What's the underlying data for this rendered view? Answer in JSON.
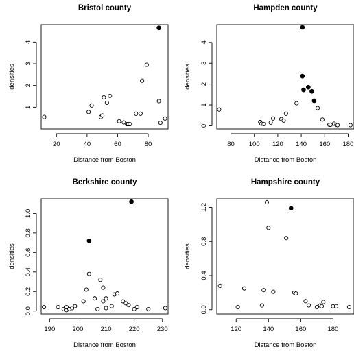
{
  "chart_data": [
    {
      "type": "scatter",
      "title": "Bristol county",
      "xlabel": "Distance from Boston",
      "ylabel": "densities",
      "xlim": [
        10,
        93
      ],
      "ylim": [
        0,
        4.8
      ],
      "xticks": [
        20,
        40,
        60,
        80
      ],
      "yticks": [
        1,
        2,
        3,
        4
      ],
      "points_open": {
        "x": [
          12,
          41,
          43,
          49,
          50,
          51,
          53,
          55,
          61,
          64,
          66,
          67,
          68,
          72,
          75,
          76,
          79,
          87,
          88,
          91
        ],
        "y": [
          0.55,
          0.78,
          1.08,
          0.55,
          0.62,
          1.45,
          1.2,
          1.52,
          0.35,
          0.3,
          0.22,
          0.22,
          0.22,
          0.7,
          0.7,
          2.22,
          2.95,
          1.28,
          0.28,
          0.48
        ]
      },
      "points_filled": {
        "x": [
          87
        ],
        "y": [
          4.65
        ]
      }
    },
    {
      "type": "scatter",
      "title": "Hampden county",
      "xlabel": "Distance from Boston",
      "ylabel": "densities",
      "xlim": [
        68,
        185
      ],
      "ylim": [
        -0.15,
        4.85
      ],
      "xticks": [
        80,
        100,
        120,
        140,
        160,
        180
      ],
      "yticks": [
        0,
        1,
        2,
        3,
        4
      ],
      "points_open": {
        "x": [
          70,
          105,
          106,
          108,
          114,
          116,
          123,
          125,
          127,
          136,
          154,
          158,
          164,
          165,
          168,
          170,
          171,
          182
        ],
        "y": [
          0.78,
          0.18,
          0.1,
          0.08,
          0.15,
          0.35,
          0.32,
          0.25,
          0.58,
          1.08,
          0.85,
          0.3,
          0.05,
          0.05,
          0.1,
          0.05,
          0.03,
          0.03
        ]
      },
      "points_filled": {
        "x": [
          141,
          141,
          142,
          146,
          149,
          151
        ],
        "y": [
          4.72,
          2.38,
          1.72,
          1.85,
          1.65,
          1.2
        ]
      }
    },
    {
      "type": "scatter",
      "title": "Berkshire county",
      "xlabel": "Distance from Boston",
      "ylabel": "densities",
      "xlim": [
        187,
        232
      ],
      "ylim": [
        -0.03,
        1.15
      ],
      "xticks": [
        190,
        200,
        210,
        220,
        230
      ],
      "yticks": [
        0.0,
        0.2,
        0.4,
        0.6,
        0.8,
        1.0
      ],
      "ytick_labels": [
        "0.0",
        "0.2",
        "0.4",
        "0.6",
        "0.8",
        "1.0"
      ],
      "points_open": {
        "x": [
          188,
          193,
          195,
          196,
          196,
          197,
          198,
          199,
          202,
          203,
          204,
          206,
          207,
          208,
          209,
          209,
          210,
          210,
          212,
          213,
          214,
          216,
          217,
          218,
          220,
          221,
          225,
          231
        ],
        "y": [
          0.04,
          0.04,
          0.02,
          0.01,
          0.04,
          0.02,
          0.03,
          0.05,
          0.1,
          0.22,
          0.38,
          0.13,
          0.02,
          0.32,
          0.24,
          0.1,
          0.03,
          0.13,
          0.05,
          0.17,
          0.18,
          0.1,
          0.08,
          0.06,
          0.02,
          0.04,
          0.02,
          0.03
        ]
      },
      "points_filled": {
        "x": [
          204,
          219
        ],
        "y": [
          0.72,
          1.12
        ]
      }
    },
    {
      "type": "scatter",
      "title": "Hampshire county",
      "xlabel": "Distance from Boston",
      "ylabel": "densities",
      "xlim": [
        108,
        193
      ],
      "ylim": [
        -0.05,
        1.3
      ],
      "xticks": [
        120,
        140,
        160,
        180
      ],
      "yticks": [
        0.0,
        0.4,
        0.8,
        1.2
      ],
      "ytick_labels": [
        "0.0",
        "0.4",
        "0.8",
        "1.2"
      ],
      "points_open": {
        "x": [
          110,
          121,
          125,
          136,
          137,
          139,
          140,
          143,
          151,
          156,
          157,
          163,
          165,
          170,
          172,
          173,
          174,
          180,
          182,
          190
        ],
        "y": [
          0.28,
          0.03,
          0.25,
          0.05,
          0.23,
          1.26,
          0.96,
          0.21,
          0.84,
          0.2,
          0.19,
          0.1,
          0.05,
          0.03,
          0.05,
          0.04,
          0.09,
          0.04,
          0.04,
          0.03
        ]
      },
      "points_filled": {
        "x": [
          154
        ],
        "y": [
          1.19
        ]
      }
    }
  ]
}
